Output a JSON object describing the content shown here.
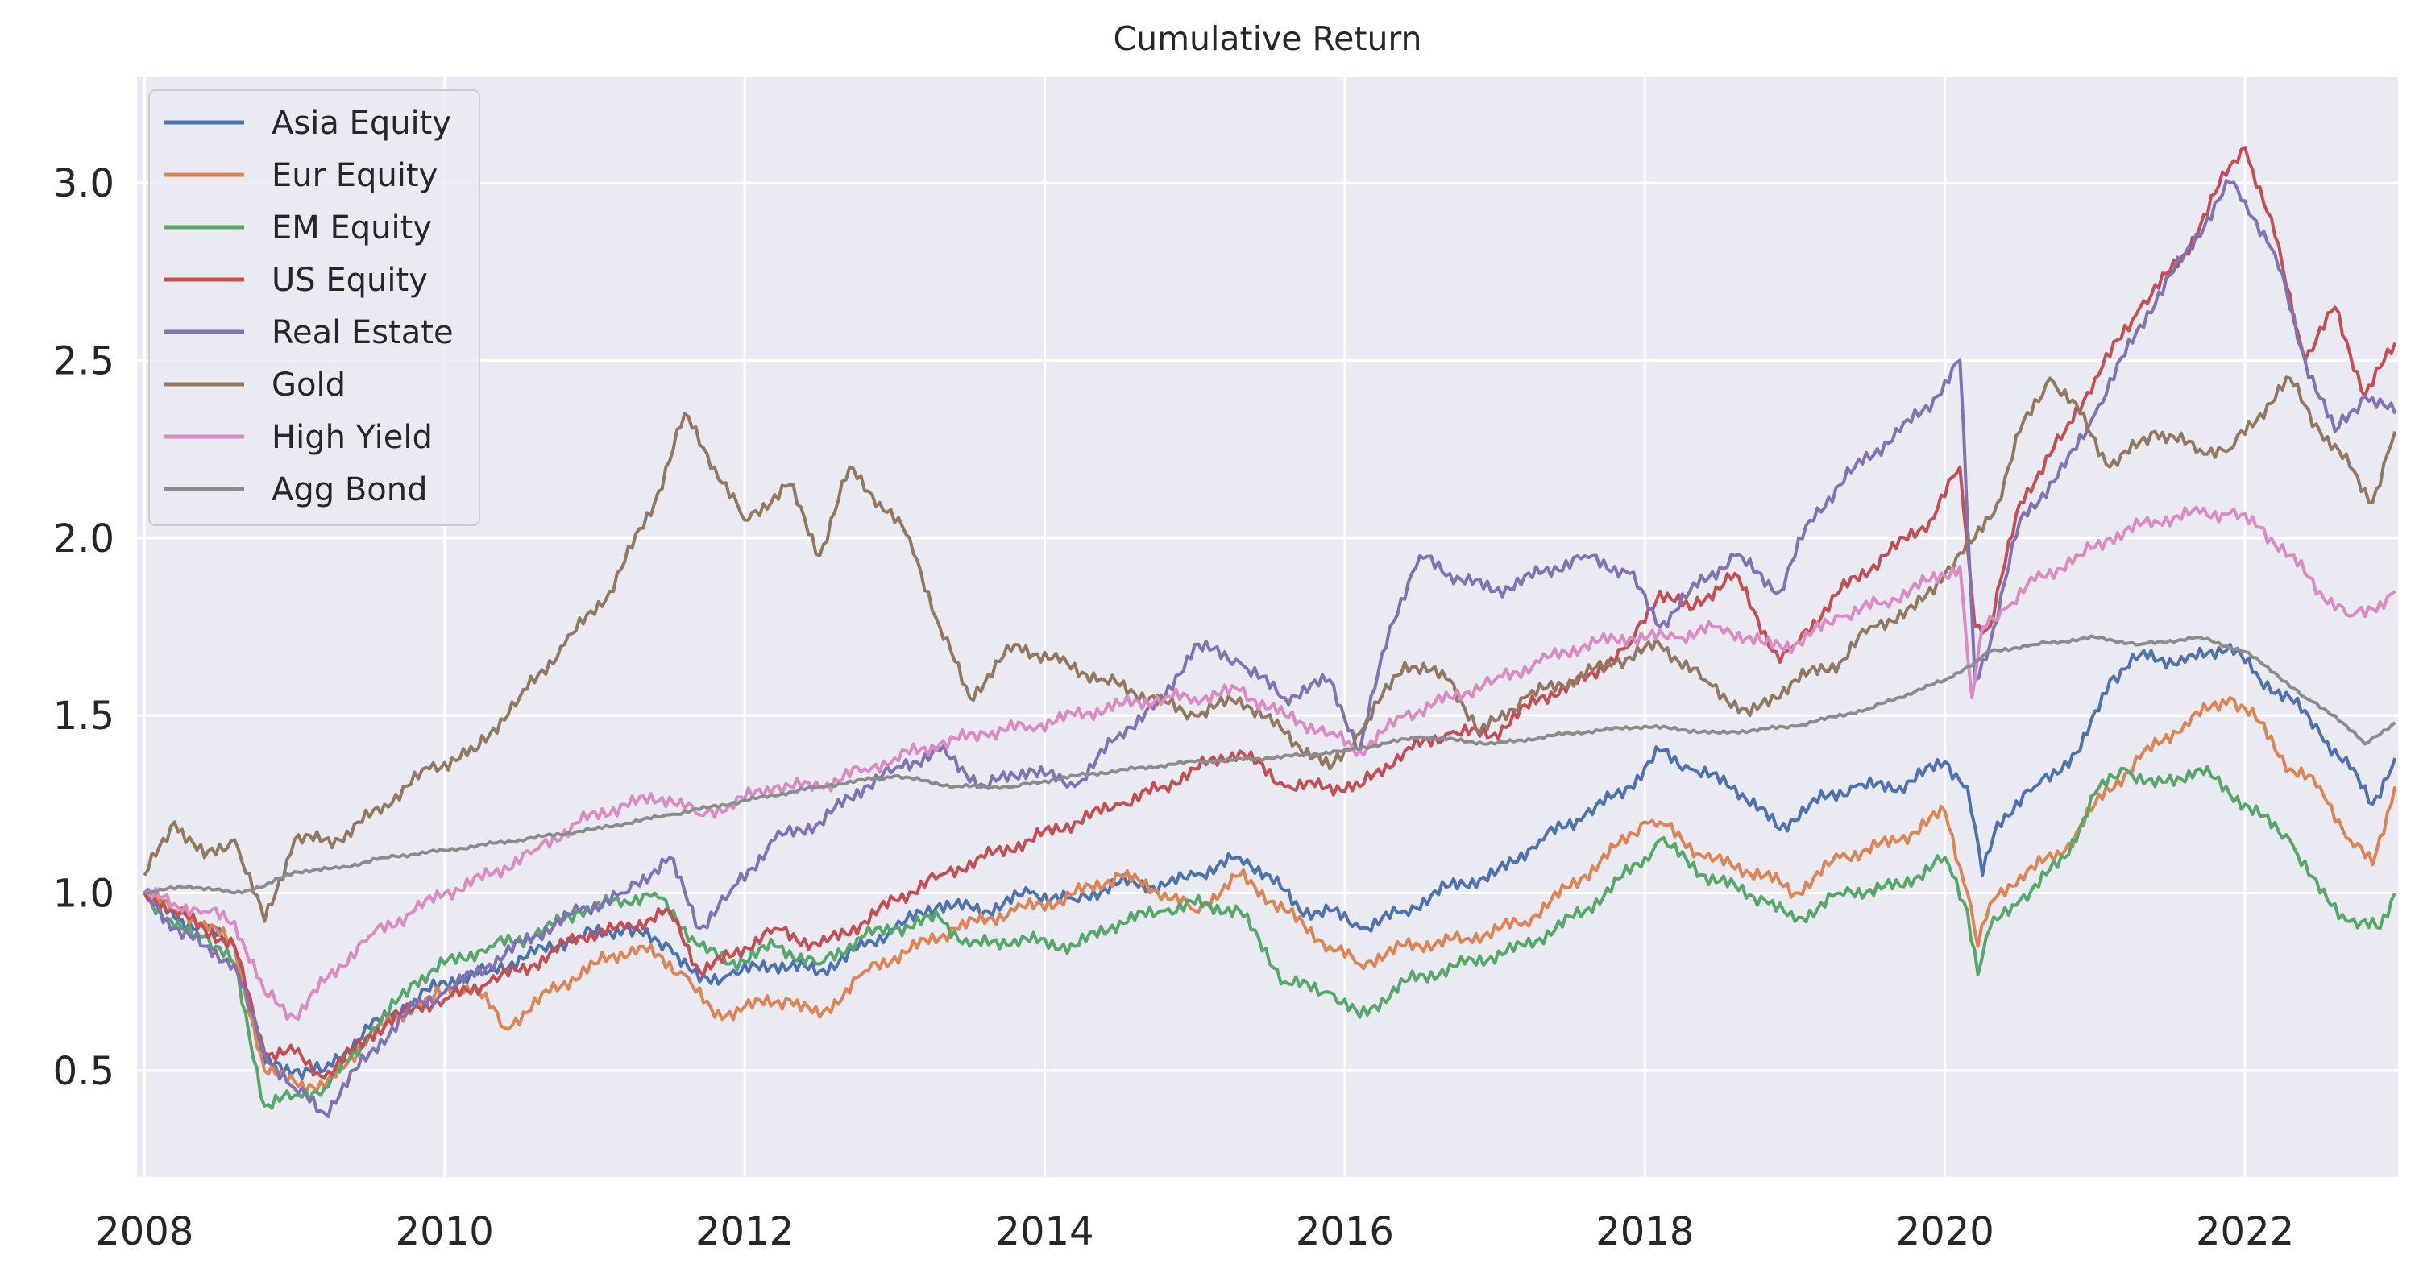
{
  "chart_data": {
    "type": "line",
    "title": "Cumulative Return",
    "xlabel": "",
    "ylabel": "",
    "xlim": [
      2007.95,
      2023.02
    ],
    "ylim": [
      0.2,
      3.3
    ],
    "x_ticks": [
      2008,
      2010,
      2012,
      2014,
      2016,
      2018,
      2020,
      2022
    ],
    "x_tick_labels": [
      "2008",
      "2010",
      "2012",
      "2014",
      "2016",
      "2018",
      "2020",
      "2022"
    ],
    "y_ticks": [
      0.5,
      1.0,
      1.5,
      2.0,
      2.5,
      3.0
    ],
    "y_tick_labels": [
      "0.5",
      "1.0",
      "1.5",
      "2.0",
      "2.5",
      "3.0"
    ],
    "grid": true,
    "legend_position": "top-left",
    "background": "#eaeaf2",
    "series": [
      {
        "name": "Asia Equity",
        "color": "#4c72b0",
        "x": [
          2008.0,
          2008.2,
          2008.4,
          2008.6,
          2008.8,
          2009.0,
          2009.2,
          2009.5,
          2009.8,
          2010.0,
          2010.3,
          2010.6,
          2010.9,
          2011.2,
          2011.5,
          2011.7,
          2011.9,
          2012.2,
          2012.5,
          2012.8,
          2013.0,
          2013.3,
          2013.6,
          2013.9,
          2014.2,
          2014.5,
          2014.8,
          2015.0,
          2015.3,
          2015.5,
          2015.7,
          2015.9,
          2016.1,
          2016.4,
          2016.7,
          2017.0,
          2017.3,
          2017.6,
          2017.9,
          2018.1,
          2018.3,
          2018.6,
          2018.9,
          2019.1,
          2019.4,
          2019.7,
          2020.0,
          2020.15,
          2020.25,
          2020.35,
          2020.6,
          2020.9,
          2021.1,
          2021.3,
          2021.6,
          2021.9,
          2022.1,
          2022.3,
          2022.5,
          2022.7,
          2022.85,
          2023.0
        ],
        "values": [
          1.0,
          0.93,
          0.9,
          0.85,
          0.52,
          0.5,
          0.5,
          0.62,
          0.7,
          0.75,
          0.78,
          0.83,
          0.88,
          0.9,
          0.85,
          0.75,
          0.77,
          0.8,
          0.78,
          0.85,
          0.9,
          0.97,
          0.95,
          1.0,
          0.98,
          1.03,
          1.02,
          1.05,
          1.1,
          1.05,
          0.95,
          0.95,
          0.9,
          0.95,
          1.02,
          1.05,
          1.15,
          1.22,
          1.3,
          1.4,
          1.35,
          1.3,
          1.18,
          1.25,
          1.3,
          1.3,
          1.37,
          1.3,
          1.05,
          1.2,
          1.3,
          1.4,
          1.6,
          1.67,
          1.65,
          1.7,
          1.6,
          1.55,
          1.45,
          1.35,
          1.25,
          1.38
        ]
      },
      {
        "name": "Eur Equity",
        "color": "#dd8452",
        "x": [
          2008.0,
          2008.2,
          2008.4,
          2008.6,
          2008.8,
          2009.0,
          2009.2,
          2009.5,
          2009.8,
          2010.0,
          2010.2,
          2010.4,
          2010.7,
          2011.0,
          2011.3,
          2011.6,
          2011.8,
          2012.0,
          2012.3,
          2012.5,
          2012.8,
          2013.0,
          2013.4,
          2013.8,
          2014.1,
          2014.5,
          2014.8,
          2015.0,
          2015.3,
          2015.6,
          2015.9,
          2016.1,
          2016.4,
          2016.8,
          2017.2,
          2017.6,
          2018.0,
          2018.1,
          2018.4,
          2018.8,
          2019.0,
          2019.3,
          2019.7,
          2020.0,
          2020.15,
          2020.22,
          2020.3,
          2020.5,
          2020.8,
          2021.0,
          2021.3,
          2021.6,
          2021.9,
          2022.1,
          2022.3,
          2022.5,
          2022.7,
          2022.85,
          2023.0
        ],
        "values": [
          1.0,
          0.95,
          0.92,
          0.85,
          0.5,
          0.47,
          0.45,
          0.6,
          0.68,
          0.72,
          0.74,
          0.62,
          0.72,
          0.8,
          0.85,
          0.77,
          0.65,
          0.68,
          0.7,
          0.65,
          0.78,
          0.82,
          0.9,
          0.95,
          0.98,
          1.05,
          1.0,
          0.95,
          1.05,
          0.95,
          0.85,
          0.8,
          0.85,
          0.87,
          0.92,
          1.05,
          1.2,
          1.2,
          1.1,
          1.05,
          1.0,
          1.1,
          1.15,
          1.23,
          1.0,
          0.85,
          0.97,
          1.05,
          1.12,
          1.25,
          1.38,
          1.48,
          1.55,
          1.48,
          1.35,
          1.3,
          1.15,
          1.08,
          1.3
        ]
      },
      {
        "name": "EM Equity",
        "color": "#55a868",
        "x": [
          2008.0,
          2008.2,
          2008.4,
          2008.6,
          2008.8,
          2009.0,
          2009.2,
          2009.5,
          2009.8,
          2010.0,
          2010.3,
          2010.6,
          2010.9,
          2011.2,
          2011.4,
          2011.7,
          2011.9,
          2012.2,
          2012.5,
          2012.8,
          2013.0,
          2013.3,
          2013.5,
          2013.8,
          2014.2,
          2014.5,
          2014.8,
          2015.0,
          2015.3,
          2015.6,
          2015.9,
          2016.1,
          2016.4,
          2016.8,
          2017.2,
          2017.6,
          2018.0,
          2018.1,
          2018.4,
          2018.8,
          2019.0,
          2019.3,
          2019.7,
          2020.0,
          2020.15,
          2020.22,
          2020.3,
          2020.5,
          2020.8,
          2021.0,
          2021.2,
          2021.4,
          2021.7,
          2022.0,
          2022.3,
          2022.5,
          2022.7,
          2022.9,
          2023.0
        ],
        "values": [
          1.0,
          0.9,
          0.88,
          0.8,
          0.4,
          0.43,
          0.45,
          0.6,
          0.75,
          0.8,
          0.85,
          0.88,
          0.95,
          0.98,
          1.0,
          0.85,
          0.8,
          0.85,
          0.8,
          0.88,
          0.9,
          0.93,
          0.85,
          0.87,
          0.85,
          0.92,
          0.95,
          0.97,
          0.95,
          0.75,
          0.72,
          0.65,
          0.75,
          0.8,
          0.85,
          0.95,
          1.1,
          1.15,
          1.05,
          0.98,
          0.92,
          1.0,
          1.02,
          1.1,
          0.95,
          0.77,
          0.9,
          0.98,
          1.1,
          1.28,
          1.35,
          1.3,
          1.35,
          1.25,
          1.15,
          1.0,
          0.92,
          0.9,
          1.0
        ]
      },
      {
        "name": "US Equity",
        "color": "#c44e52",
        "x": [
          2008.0,
          2008.2,
          2008.4,
          2008.6,
          2008.8,
          2009.0,
          2009.2,
          2009.5,
          2009.8,
          2010.0,
          2010.3,
          2010.6,
          2010.9,
          2011.2,
          2011.5,
          2011.7,
          2011.9,
          2012.2,
          2012.5,
          2012.8,
          2013.0,
          2013.3,
          2013.6,
          2013.9,
          2014.2,
          2014.5,
          2014.8,
          2015.0,
          2015.3,
          2015.6,
          2015.8,
          2016.1,
          2016.4,
          2016.7,
          2017.0,
          2017.3,
          2017.6,
          2017.9,
          2018.1,
          2018.3,
          2018.6,
          2018.9,
          2019.0,
          2019.3,
          2019.6,
          2019.9,
          2020.1,
          2020.2,
          2020.3,
          2020.5,
          2020.8,
          2021.0,
          2021.3,
          2021.6,
          2021.9,
          2022.0,
          2022.2,
          2022.4,
          2022.6,
          2022.8,
          2023.0
        ],
        "values": [
          1.0,
          0.95,
          0.9,
          0.85,
          0.55,
          0.55,
          0.48,
          0.6,
          0.68,
          0.7,
          0.75,
          0.8,
          0.88,
          0.9,
          0.95,
          0.78,
          0.82,
          0.9,
          0.85,
          0.92,
          0.98,
          1.05,
          1.1,
          1.15,
          1.2,
          1.25,
          1.3,
          1.35,
          1.4,
          1.3,
          1.3,
          1.3,
          1.4,
          1.45,
          1.45,
          1.55,
          1.6,
          1.7,
          1.85,
          1.8,
          1.9,
          1.65,
          1.7,
          1.85,
          1.95,
          2.05,
          2.2,
          1.75,
          1.75,
          2.1,
          2.3,
          2.45,
          2.65,
          2.8,
          3.05,
          3.1,
          2.85,
          2.5,
          2.65,
          2.4,
          2.55
        ]
      },
      {
        "name": "Real Estate",
        "color": "#8172b3",
        "x": [
          2008.0,
          2008.2,
          2008.4,
          2008.6,
          2008.8,
          2009.0,
          2009.2,
          2009.5,
          2009.8,
          2010.0,
          2010.3,
          2010.6,
          2010.9,
          2011.2,
          2011.5,
          2011.7,
          2011.9,
          2012.2,
          2012.5,
          2012.8,
          2013.0,
          2013.3,
          2013.6,
          2013.9,
          2014.2,
          2014.5,
          2014.8,
          2015.0,
          2015.3,
          2015.6,
          2015.9,
          2016.1,
          2016.3,
          2016.5,
          2016.7,
          2017.0,
          2017.3,
          2017.6,
          2017.9,
          2018.1,
          2018.3,
          2018.6,
          2018.9,
          2019.1,
          2019.4,
          2019.7,
          2019.95,
          2020.1,
          2020.2,
          2020.3,
          2020.5,
          2020.8,
          2021.0,
          2021.3,
          2021.6,
          2021.9,
          2022.0,
          2022.2,
          2022.4,
          2022.6,
          2022.8,
          2023.0
        ],
        "values": [
          1.0,
          0.9,
          0.85,
          0.8,
          0.55,
          0.45,
          0.38,
          0.55,
          0.68,
          0.72,
          0.8,
          0.88,
          0.95,
          1.0,
          1.1,
          0.9,
          1.0,
          1.15,
          1.2,
          1.3,
          1.35,
          1.4,
          1.3,
          1.35,
          1.3,
          1.45,
          1.55,
          1.7,
          1.65,
          1.55,
          1.6,
          1.4,
          1.75,
          1.95,
          1.9,
          1.85,
          1.9,
          1.95,
          1.9,
          1.75,
          1.85,
          1.95,
          1.85,
          2.05,
          2.2,
          2.3,
          2.4,
          2.5,
          1.6,
          1.7,
          2.05,
          2.2,
          2.35,
          2.6,
          2.8,
          3.0,
          2.95,
          2.8,
          2.5,
          2.3,
          2.4,
          2.35
        ]
      },
      {
        "name": "Gold",
        "color": "#937860",
        "x": [
          2008.0,
          2008.2,
          2008.4,
          2008.6,
          2008.8,
          2009.0,
          2009.3,
          2009.6,
          2009.9,
          2010.2,
          2010.5,
          2010.8,
          2011.1,
          2011.4,
          2011.6,
          2011.8,
          2012.0,
          2012.3,
          2012.5,
          2012.7,
          2012.9,
          2013.1,
          2013.3,
          2013.5,
          2013.8,
          2014.1,
          2014.4,
          2014.7,
          2015.0,
          2015.3,
          2015.6,
          2015.9,
          2016.1,
          2016.4,
          2016.7,
          2016.9,
          2017.2,
          2017.5,
          2017.8,
          2018.1,
          2018.4,
          2018.7,
          2019.0,
          2019.3,
          2019.5,
          2019.8,
          2020.0,
          2020.2,
          2020.35,
          2020.5,
          2020.7,
          2020.9,
          2021.1,
          2021.4,
          2021.7,
          2021.9,
          2022.1,
          2022.3,
          2022.5,
          2022.7,
          2022.85,
          2023.0
        ],
        "values": [
          1.05,
          1.2,
          1.1,
          1.15,
          0.92,
          1.15,
          1.15,
          1.25,
          1.35,
          1.4,
          1.55,
          1.7,
          1.85,
          2.1,
          2.35,
          2.2,
          2.05,
          2.15,
          1.95,
          2.2,
          2.1,
          2.0,
          1.75,
          1.55,
          1.7,
          1.65,
          1.6,
          1.55,
          1.5,
          1.55,
          1.45,
          1.35,
          1.45,
          1.65,
          1.6,
          1.45,
          1.55,
          1.6,
          1.65,
          1.7,
          1.6,
          1.5,
          1.6,
          1.65,
          1.75,
          1.8,
          1.9,
          2.0,
          2.1,
          2.3,
          2.45,
          2.35,
          2.2,
          2.3,
          2.25,
          2.25,
          2.35,
          2.45,
          2.3,
          2.2,
          2.1,
          2.3
        ]
      },
      {
        "name": "High Yield",
        "color": "#da8bc3",
        "x": [
          2008.0,
          2008.2,
          2008.4,
          2008.6,
          2008.8,
          2009.0,
          2009.2,
          2009.5,
          2009.8,
          2010.0,
          2010.3,
          2010.6,
          2010.9,
          2011.2,
          2011.5,
          2011.7,
          2011.9,
          2012.2,
          2012.5,
          2012.8,
          2013.0,
          2013.3,
          2013.6,
          2013.9,
          2014.2,
          2014.5,
          2014.8,
          2015.0,
          2015.3,
          2015.6,
          2015.9,
          2016.1,
          2016.4,
          2016.7,
          2017.0,
          2017.3,
          2017.6,
          2017.9,
          2018.2,
          2018.5,
          2018.8,
          2019.0,
          2019.3,
          2019.6,
          2019.9,
          2020.1,
          2020.18,
          2020.25,
          2020.4,
          2020.6,
          2020.9,
          2021.1,
          2021.4,
          2021.7,
          2021.9,
          2022.1,
          2022.3,
          2022.5,
          2022.7,
          2022.85,
          2023.0
        ],
        "values": [
          1.0,
          0.97,
          0.95,
          0.92,
          0.72,
          0.65,
          0.75,
          0.88,
          0.95,
          1.0,
          1.05,
          1.12,
          1.2,
          1.25,
          1.27,
          1.22,
          1.25,
          1.3,
          1.3,
          1.35,
          1.38,
          1.42,
          1.45,
          1.47,
          1.5,
          1.53,
          1.55,
          1.55,
          1.57,
          1.5,
          1.45,
          1.4,
          1.5,
          1.55,
          1.6,
          1.65,
          1.7,
          1.72,
          1.72,
          1.75,
          1.7,
          1.7,
          1.78,
          1.82,
          1.88,
          1.92,
          1.55,
          1.75,
          1.8,
          1.88,
          1.95,
          2.0,
          2.05,
          2.07,
          2.07,
          2.03,
          1.95,
          1.85,
          1.78,
          1.8,
          1.85
        ]
      },
      {
        "name": "Agg Bond",
        "color": "#8c8c8c",
        "x": [
          2008.0,
          2008.3,
          2008.6,
          2008.8,
          2009.0,
          2009.3,
          2009.6,
          2010.0,
          2010.5,
          2011.0,
          2011.5,
          2012.0,
          2012.5,
          2013.0,
          2013.4,
          2013.8,
          2014.2,
          2014.6,
          2015.0,
          2015.5,
          2016.0,
          2016.5,
          2017.0,
          2017.5,
          2018.0,
          2018.5,
          2019.0,
          2019.5,
          2020.0,
          2020.2,
          2020.3,
          2020.6,
          2021.0,
          2021.3,
          2021.7,
          2022.0,
          2022.2,
          2022.4,
          2022.6,
          2022.8,
          2023.0
        ],
        "values": [
          1.0,
          1.02,
          1.0,
          1.02,
          1.06,
          1.07,
          1.1,
          1.12,
          1.15,
          1.18,
          1.22,
          1.26,
          1.3,
          1.33,
          1.3,
          1.3,
          1.33,
          1.35,
          1.37,
          1.38,
          1.4,
          1.44,
          1.42,
          1.45,
          1.47,
          1.45,
          1.47,
          1.52,
          1.6,
          1.65,
          1.68,
          1.7,
          1.72,
          1.7,
          1.72,
          1.68,
          1.62,
          1.55,
          1.5,
          1.42,
          1.48
        ]
      }
    ]
  }
}
